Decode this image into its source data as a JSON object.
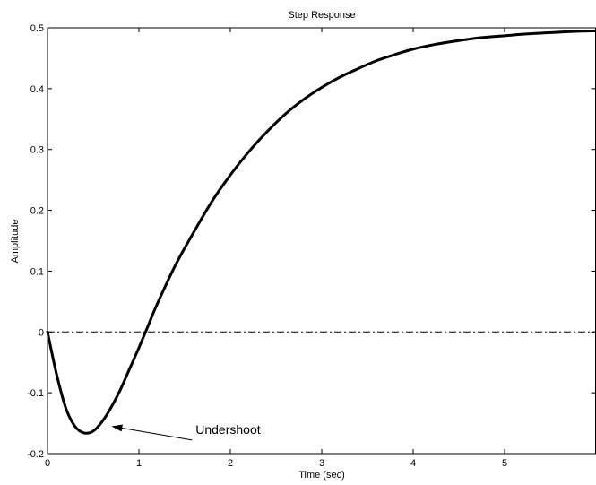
{
  "chart_data": {
    "type": "line",
    "title": "Step Response",
    "xlabel": "Time (sec)",
    "ylabel": "Amplitude",
    "xlim": [
      0,
      6
    ],
    "ylim": [
      -0.2,
      0.5
    ],
    "xticks": [
      0,
      1,
      2,
      3,
      4,
      5
    ],
    "xtick_labels": [
      "0",
      "1",
      "2",
      "3",
      "4",
      "5"
    ],
    "yticks": [
      -0.2,
      -0.1,
      0,
      0.1,
      0.2,
      0.3,
      0.4,
      0.5
    ],
    "ytick_labels": [
      "-0.2",
      "-0.1",
      "0",
      "0.1",
      "0.2",
      "0.3",
      "0.4",
      "0.5"
    ],
    "grid": false,
    "reference_line": {
      "y": 0,
      "style": "dash-dot"
    },
    "series": [
      {
        "color": "#000000",
        "x": [
          0,
          0.1,
          0.2,
          0.3,
          0.4,
          0.5,
          0.6,
          0.7,
          0.8,
          0.9,
          1.0,
          1.1,
          1.2,
          1.4,
          1.6,
          1.8,
          2.0,
          2.2,
          2.4,
          2.6,
          2.8,
          3.0,
          3.2,
          3.4,
          3.6,
          3.8,
          4.0,
          4.25,
          4.5,
          4.75,
          5.0,
          5.25,
          5.5,
          5.75,
          6.0
        ],
        "y": [
          0,
          -0.07,
          -0.125,
          -0.155,
          -0.166,
          -0.163,
          -0.147,
          -0.123,
          -0.094,
          -0.06,
          -0.026,
          0.01,
          0.046,
          0.11,
          0.164,
          0.215,
          0.258,
          0.296,
          0.329,
          0.358,
          0.382,
          0.402,
          0.419,
          0.433,
          0.446,
          0.456,
          0.465,
          0.473,
          0.479,
          0.484,
          0.487,
          0.49,
          0.492,
          0.494,
          0.495
        ]
      }
    ],
    "annotations": [
      {
        "text": "Undershoot",
        "x": 0.7,
        "y": -0.155,
        "text_x": 1.62,
        "text_y": -0.16
      }
    ]
  },
  "colors": {
    "line": "#000000",
    "axes": "#000000",
    "background": "#ffffff"
  }
}
